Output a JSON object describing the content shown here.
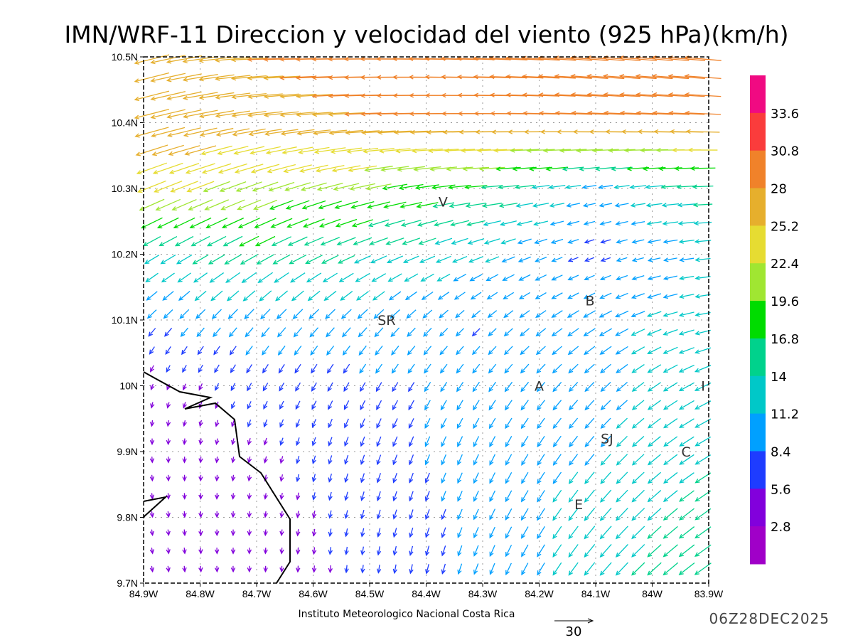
{
  "title": "IMN/WRF-11 Direccion y velocidad del viento (925 hPa)(km/h)",
  "footer": {
    "institution": "Instituto Meteorologico Nacional Costa Rica",
    "reference_vector_label": "30",
    "valid_time": "06Z28DEC2025"
  },
  "chart_data": {
    "type": "vector_field",
    "title": "IMN/WRF-11 Direccion y velocidad del viento (925 hPa)(km/h)",
    "xlim": [
      -84.9,
      -83.9
    ],
    "ylim": [
      9.7,
      10.5
    ],
    "grid": true,
    "x_ticks": [
      "84.9W",
      "84.8W",
      "84.7W",
      "84.6W",
      "84.5W",
      "84.4W",
      "84.3W",
      "84.2W",
      "84.1W",
      "84W",
      "83.9W"
    ],
    "y_ticks": [
      "10.5N",
      "10.4N",
      "10.3N",
      "10.2N",
      "10.1N",
      "10N",
      "9.9N",
      "9.8N",
      "9.7N"
    ],
    "units": "km/h",
    "reference_vector": 30,
    "sample_lons": [
      -84.9,
      -84.7,
      -84.5,
      -84.3,
      -84.1,
      -83.9
    ],
    "sample_lats": [
      10.5,
      10.4,
      10.3,
      10.2,
      10.1,
      10.0,
      9.9,
      9.8,
      9.7
    ],
    "speed_kmh": [
      [
        28,
        28,
        29,
        30,
        30,
        29
      ],
      [
        28,
        27,
        28,
        28,
        28,
        28
      ],
      [
        24,
        21,
        20,
        17,
        10,
        16
      ],
      [
        13,
        16,
        14,
        12,
        7,
        12
      ],
      [
        9,
        10,
        10,
        8,
        11,
        12
      ],
      [
        4,
        7,
        8,
        9,
        10,
        14
      ],
      [
        3,
        5,
        8,
        9,
        11,
        14
      ],
      [
        3,
        4,
        7,
        9,
        13,
        15
      ],
      [
        3,
        4,
        6,
        9,
        13,
        16
      ]
    ],
    "direction_toward_deg": [
      [
        255,
        268,
        270,
        272,
        275,
        275
      ],
      [
        255,
        262,
        268,
        270,
        272,
        272
      ],
      [
        248,
        250,
        258,
        265,
        260,
        268
      ],
      [
        240,
        242,
        248,
        250,
        250,
        265
      ],
      [
        225,
        222,
        225,
        228,
        240,
        260
      ],
      [
        200,
        210,
        210,
        215,
        225,
        245
      ],
      [
        175,
        195,
        200,
        205,
        220,
        240
      ],
      [
        170,
        185,
        195,
        205,
        220,
        235
      ],
      [
        170,
        180,
        185,
        200,
        220,
        235
      ]
    ],
    "colorbar": {
      "labels": [
        "33.6",
        "30.8",
        "28",
        "25.2",
        "22.4",
        "19.6",
        "16.8",
        "14",
        "11.2",
        "8.4",
        "5.6",
        "2.8"
      ],
      "thresholds": [
        2.8,
        5.6,
        8.4,
        11.2,
        14,
        16.8,
        19.6,
        22.4,
        25.2,
        28,
        30.8,
        33.6
      ],
      "colors": [
        "#a000c8",
        "#8200dc",
        "#1e3cff",
        "#00a0ff",
        "#00c8c8",
        "#00d28c",
        "#00dc00",
        "#a0e632",
        "#e6dc32",
        "#e6af2d",
        "#f0822a",
        "#fa3c3c",
        "#f00a82"
      ]
    },
    "places": [
      {
        "label": "V",
        "lon": -84.37,
        "lat": 10.28
      },
      {
        "label": "SR",
        "lon": -84.47,
        "lat": 10.1
      },
      {
        "label": "B",
        "lon": -84.11,
        "lat": 10.13
      },
      {
        "label": "A",
        "lon": -84.2,
        "lat": 10.0
      },
      {
        "label": "I",
        "lon": -83.91,
        "lat": 10.0
      },
      {
        "label": "SJ",
        "lon": -84.08,
        "lat": 9.92
      },
      {
        "label": "C",
        "lon": -83.94,
        "lat": 9.9
      },
      {
        "label": "E",
        "lon": -84.13,
        "lat": 9.82
      }
    ]
  }
}
